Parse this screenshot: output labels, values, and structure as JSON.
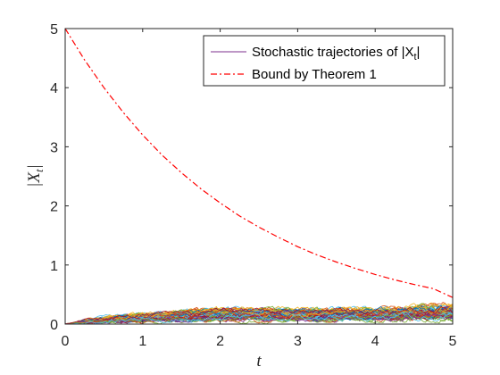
{
  "chart_data": {
    "type": "line",
    "xlabel": "t",
    "ylabel": "|X_t|",
    "xlim": [
      0,
      5
    ],
    "ylim": [
      0,
      5
    ],
    "xticks": [
      "0",
      "1",
      "2",
      "3",
      "4",
      "5"
    ],
    "yticks": [
      "0",
      "1",
      "2",
      "3",
      "4",
      "5"
    ],
    "grid": false,
    "legend_position": "top-right",
    "legend": {
      "trajectories_prefix": "Stochastic trajectories of |X",
      "trajectories_subscript": "t",
      "trajectories_suffix": "|",
      "bound_label": "Bound by Theorem 1"
    },
    "series": [
      {
        "name": "Bound by Theorem 1",
        "style": "dash-dot",
        "color": "#ff0000",
        "x": [
          0,
          0.25,
          0.5,
          0.75,
          1,
          1.25,
          1.5,
          1.75,
          2,
          2.25,
          2.5,
          2.75,
          3,
          3.25,
          3.5,
          3.75,
          4,
          4.25,
          4.5,
          4.75,
          5
        ],
        "y": [
          5.0,
          4.47,
          4.0,
          3.58,
          3.2,
          2.86,
          2.56,
          2.29,
          2.05,
          1.83,
          1.64,
          1.47,
          1.31,
          1.17,
          1.05,
          0.94,
          0.84,
          0.75,
          0.67,
          0.6,
          0.45
        ]
      },
      {
        "name": "Stochastic trajectories of |X_t|",
        "style": "solid",
        "color": "#7e2f8e",
        "x": [
          0,
          0.25,
          0.5,
          0.75,
          1,
          1.25,
          1.5,
          1.75,
          2,
          2.25,
          2.5,
          2.75,
          3,
          3.25,
          3.5,
          3.75,
          4,
          4.25,
          4.5,
          4.75,
          5
        ],
        "y": [
          0.0,
          0.07,
          0.1,
          0.12,
          0.14,
          0.15,
          0.16,
          0.17,
          0.18,
          0.18,
          0.19,
          0.19,
          0.2,
          0.2,
          0.2,
          0.21,
          0.21,
          0.21,
          0.22,
          0.22,
          0.22
        ]
      }
    ],
    "trajectory_colors": [
      "#0072bd",
      "#d95319",
      "#edb120",
      "#7e2f8e",
      "#77ac30",
      "#4dbeee",
      "#a2142f"
    ],
    "trajectory_band": {
      "x": [
        0,
        0.25,
        0.5,
        0.75,
        1,
        1.25,
        1.5,
        1.75,
        2,
        2.25,
        2.5,
        2.75,
        3,
        3.25,
        3.5,
        3.75,
        4,
        4.25,
        4.5,
        4.75,
        5
      ],
      "y_max": [
        0.02,
        0.15,
        0.2,
        0.22,
        0.24,
        0.25,
        0.27,
        0.3,
        0.31,
        0.3,
        0.3,
        0.3,
        0.29,
        0.3,
        0.31,
        0.3,
        0.3,
        0.32,
        0.35,
        0.36,
        0.38
      ]
    }
  }
}
